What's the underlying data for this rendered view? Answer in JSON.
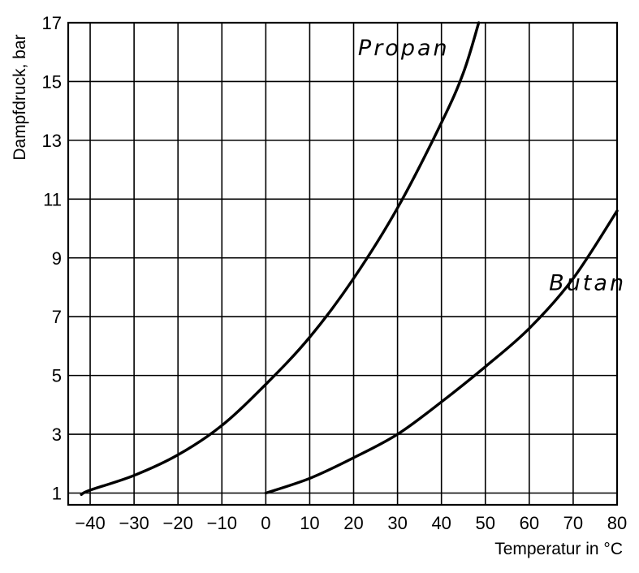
{
  "chart_data": {
    "type": "line",
    "title": "",
    "xlabel": "Temperatur in °C",
    "ylabel": "Dampfdruck, bar",
    "xlim": [
      -45,
      80
    ],
    "ylim": [
      0.6,
      17
    ],
    "x_ticks": [
      -40,
      -30,
      -20,
      -10,
      0,
      10,
      20,
      30,
      40,
      50,
      60,
      70,
      80
    ],
    "x_tick_labels": [
      "−40",
      "−30",
      "−20",
      "−10",
      "0",
      "10",
      "20",
      "30",
      "40",
      "50",
      "60",
      "70",
      "80"
    ],
    "y_ticks": [
      1,
      3,
      5,
      7,
      9,
      11,
      13,
      15,
      17
    ],
    "y_tick_labels": [
      "1",
      "3",
      "5",
      "7",
      "9",
      "11",
      "13",
      "15",
      "17"
    ],
    "x_grid": [
      -45,
      -40,
      -30,
      -20,
      -10,
      0,
      10,
      20,
      30,
      40,
      50,
      60,
      70,
      80
    ],
    "y_grid": [
      1,
      3,
      5,
      7,
      9,
      11,
      13,
      15,
      17
    ],
    "grid": true,
    "legend": "none",
    "series": [
      {
        "name": "Propan",
        "x": [
          -42,
          -40,
          -30,
          -20,
          -10,
          0,
          10,
          20,
          30,
          40,
          45,
          48.5
        ],
        "y": [
          0.95,
          1.1,
          1.6,
          2.3,
          3.3,
          4.7,
          6.3,
          8.3,
          10.7,
          13.6,
          15.3,
          17
        ]
      },
      {
        "name": "Butan",
        "x": [
          0,
          10,
          20,
          30,
          40,
          50,
          60,
          70,
          80
        ],
        "y": [
          1.0,
          1.5,
          2.2,
          3.0,
          4.1,
          5.3,
          6.6,
          8.3,
          10.6
        ]
      }
    ]
  }
}
